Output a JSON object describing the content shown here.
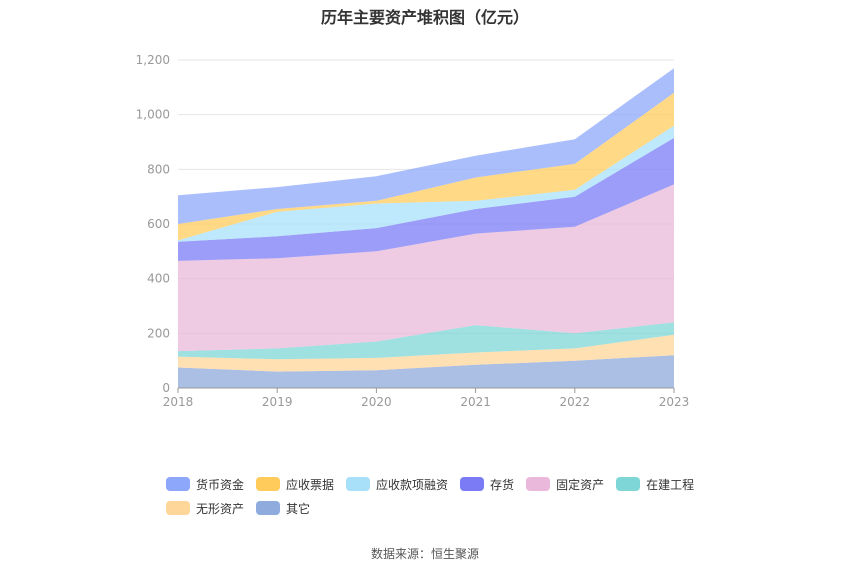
{
  "chart_data": {
    "type": "area",
    "stacked": true,
    "title": "历年主要资产堆积图（亿元）",
    "categories": [
      "2018",
      "2019",
      "2020",
      "2021",
      "2022",
      "2023"
    ],
    "ylim": [
      0,
      1200
    ],
    "yticks": [
      0,
      200,
      400,
      600,
      800,
      1000,
      1200
    ],
    "ytick_labels": [
      "0",
      "200",
      "400",
      "600",
      "800",
      "1,000",
      "1,200"
    ],
    "grid": true,
    "legend_position": "bottom",
    "series": [
      {
        "name": "其它",
        "color": "#8faadc",
        "values": [
          75,
          60,
          65,
          85,
          100,
          120
        ]
      },
      {
        "name": "无形资产",
        "color": "#ffd699",
        "values": [
          40,
          45,
          45,
          45,
          45,
          75
        ]
      },
      {
        "name": "在建工程",
        "color": "#7fd6d6",
        "values": [
          20,
          40,
          60,
          100,
          55,
          45
        ]
      },
      {
        "name": "固定资产",
        "color": "#eab8da",
        "values": [
          330,
          330,
          330,
          335,
          390,
          505
        ]
      },
      {
        "name": "存货",
        "color": "#7b7cf5",
        "values": [
          70,
          80,
          85,
          90,
          110,
          170
        ]
      },
      {
        "name": "应收款项融资",
        "color": "#a8e0fa",
        "values": [
          5,
          90,
          90,
          30,
          25,
          45
        ]
      },
      {
        "name": "应收票据",
        "color": "#ffcc5c",
        "values": [
          60,
          10,
          10,
          85,
          95,
          120
        ]
      },
      {
        "name": "货币资金",
        "color": "#8da8fb",
        "values": [
          105,
          80,
          90,
          80,
          90,
          90
        ]
      }
    ]
  },
  "legend": {
    "items": [
      {
        "label": "货币资金",
        "color": "#8da8fb"
      },
      {
        "label": "应收票据",
        "color": "#ffcc5c"
      },
      {
        "label": "应收款项融资",
        "color": "#a8e0fa"
      },
      {
        "label": "存货",
        "color": "#7b7cf5"
      },
      {
        "label": "固定资产",
        "color": "#eab8da"
      },
      {
        "label": "在建工程",
        "color": "#7fd6d6"
      },
      {
        "label": "无形资产",
        "color": "#ffd699"
      },
      {
        "label": "其它",
        "color": "#8faadc"
      }
    ]
  },
  "source_note": "数据来源：恒生聚源"
}
